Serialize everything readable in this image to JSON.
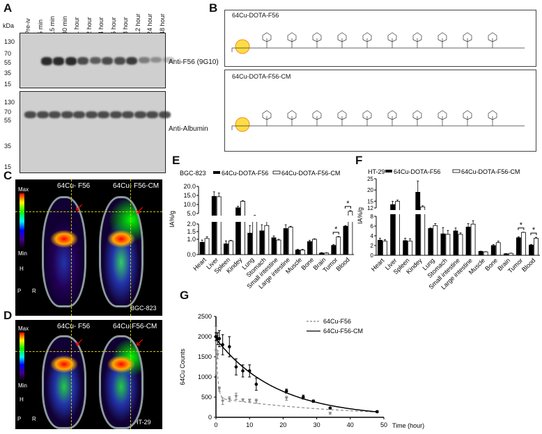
{
  "panels": {
    "A": "A",
    "B": "B",
    "C": "C",
    "D": "D",
    "E": "E",
    "F": "F",
    "G": "G"
  },
  "panelA": {
    "unit_label": "kDa",
    "lanes": [
      "Pre-iv",
      "5 min",
      "15 min",
      "30 min",
      "1 hour",
      "2 hour",
      "4 hour",
      "6 hour",
      "8 hour",
      "12 hour",
      "24 hour",
      "48 hour"
    ],
    "blot1": {
      "label": "Anti-F56 (9G10)",
      "markers": [
        "130",
        "70",
        "55",
        "35",
        "15"
      ]
    },
    "blot2": {
      "label": "Anti-Albumin",
      "markers": [
        "130",
        "70",
        "55",
        "35",
        "15"
      ]
    }
  },
  "panelB": {
    "structure1_title": "64Cu-DOTA-F56",
    "structure2_title": "64Cu-DOTA-F56-CM"
  },
  "panelC": {
    "label_left": "64Cu- F56",
    "label_right": "64Cu- F56-CM",
    "scale_max": "Max",
    "scale_min": "Min",
    "orient_h": "H",
    "orient_p": "P",
    "orient_r": "R",
    "cell_line": "BGC-823"
  },
  "panelD": {
    "label_left": "64Cu- F56",
    "label_right": "64Cu-F56-CM",
    "scale_max": "Max",
    "scale_min": "Min",
    "orient_h": "H",
    "orient_p": "P",
    "orient_r": "R",
    "cell_line": "HT-29"
  },
  "colors": {
    "f56": "#000000",
    "cm": "#ffffff",
    "g_f56": "#888888",
    "g_cm": "#000000"
  },
  "chart_data": [
    {
      "id": "E",
      "type": "bar",
      "title": "BGC-823",
      "ylabel": "IA%/g",
      "legend": [
        "64Cu-DOTA-F56",
        "64Cu-DOTA-F56-CM"
      ],
      "categories": [
        "Heart",
        "Liver",
        "Spleen",
        "Kindey",
        "Lung",
        "Stomach",
        "Small intestine",
        "Large intestine",
        "Muscle",
        "Bone",
        "Brain",
        "Tumor",
        "Blood"
      ],
      "series": [
        {
          "name": "64Cu-DOTA-F56",
          "values": [
            0.8,
            14.5,
            0.7,
            8.2,
            1.4,
            1.55,
            1.1,
            1.7,
            0.3,
            0.85,
            0.1,
            0.6,
            1.85
          ],
          "errors": [
            0.15,
            2.5,
            0.2,
            0.8,
            0.5,
            0.4,
            0.12,
            0.25,
            0.05,
            0.08,
            0.03,
            0.05,
            0.05
          ]
        },
        {
          "name": "64Cu-DOTA-F56-CM",
          "values": [
            1.05,
            14.3,
            0.9,
            11.8,
            3.5,
            1.9,
            0.95,
            1.8,
            0.3,
            1.0,
            0.1,
            1.15,
            6.2
          ],
          "errors": [
            0.12,
            2.0,
            0.03,
            0.3,
            0.5,
            0.3,
            0.05,
            0.05,
            0.05,
            0.03,
            0.02,
            0.03,
            0.4
          ]
        }
      ],
      "yticks": [
        "0.0",
        "1.0",
        "1.5",
        "2.0",
        "5.0",
        "10.0",
        "15.0",
        "20.0"
      ],
      "ybreak": [
        2,
        5
      ],
      "ylim": [
        0,
        20
      ],
      "significance": [
        {
          "category": "Tumor",
          "label": "*"
        },
        {
          "category": "Blood",
          "label": "*"
        }
      ]
    },
    {
      "id": "F",
      "type": "bar",
      "title": "HT-29",
      "ylabel": "IA%/g",
      "legend": [
        "64Cu-DOTA-F56",
        "64Cu-DOTA-F56-CM"
      ],
      "categories": [
        "Heart",
        "Liver",
        "Spleen",
        "Kindey",
        "Lung",
        "Stomach",
        "Small intestine",
        "Large intestine",
        "Muscle",
        "Bone",
        "Brain",
        "Tumor",
        "Blood"
      ],
      "series": [
        {
          "name": "64Cu-DOTA-F56",
          "values": [
            3.1,
            13.5,
            3.0,
            19,
            5.5,
            4.4,
            5.0,
            5.8,
            0.8,
            2.0,
            0.3,
            3.6,
            2.1
          ],
          "errors": [
            0.4,
            1.5,
            0.5,
            5,
            0.1,
            1.3,
            0.6,
            0.7,
            0.05,
            0.2,
            0.05,
            0.2,
            0.1
          ]
        },
        {
          "name": "64Cu-DOTA-F56-CM",
          "values": [
            2.9,
            15,
            2.9,
            12.5,
            6.1,
            4.3,
            4.3,
            6.4,
            0.7,
            2.6,
            0.4,
            4.7,
            3.5
          ],
          "errors": [
            0.3,
            0.5,
            0.5,
            0.5,
            0.4,
            0.8,
            0.3,
            0.7,
            0.05,
            0.3,
            0.05,
            0.05,
            0.2
          ]
        }
      ],
      "yticks": [
        "0",
        "2",
        "4",
        "6",
        "8",
        "12",
        "15",
        "20",
        "25"
      ],
      "ybreak": [
        8,
        12
      ],
      "ylim": [
        0,
        25
      ],
      "significance": [
        {
          "category": "Tumor",
          "label": "*"
        },
        {
          "category": "Blood",
          "label": "*"
        }
      ]
    },
    {
      "id": "G",
      "type": "line",
      "xlabel": "Time (hour)",
      "ylabel": "64Cu Counts",
      "xlim": [
        0,
        50
      ],
      "ylim": [
        0,
        2500
      ],
      "xticks": [
        "0",
        "10",
        "20",
        "30",
        "40",
        "50"
      ],
      "yticks": [
        "0",
        "500",
        "1000",
        "1500",
        "2000",
        "2500"
      ],
      "legend_position": "top-right",
      "series": [
        {
          "name": "64Cu-F56",
          "style": "dashed",
          "x": [
            0,
            0.25,
            0.5,
            1,
            2,
            4,
            6,
            8,
            10,
            12,
            21,
            34,
            48
          ],
          "y": [
            1650,
            2000,
            1550,
            700,
            400,
            450,
            520,
            430,
            420,
            400,
            470,
            100,
            130
          ],
          "errors": [
            600,
            80,
            100,
            50,
            80,
            60,
            80,
            30,
            30,
            50,
            50,
            20,
            20
          ]
        },
        {
          "name": "64Cu-F56-CM",
          "style": "solid",
          "x": [
            0,
            0.5,
            1,
            2,
            4,
            6,
            8,
            10,
            12,
            21,
            26,
            29,
            34,
            48
          ],
          "y": [
            2000,
            1950,
            1950,
            1800,
            1750,
            1250,
            1150,
            1150,
            820,
            650,
            500,
            400,
            230,
            140
          ],
          "errors": [
            100,
            150,
            200,
            250,
            250,
            200,
            150,
            150,
            150,
            50,
            50,
            30,
            20,
            20
          ]
        }
      ]
    }
  ]
}
